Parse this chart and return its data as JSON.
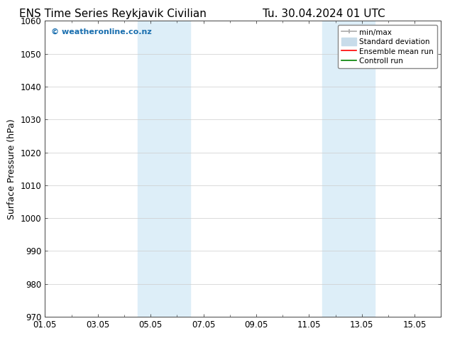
{
  "title_left": "ENS Time Series Reykjavik Civilian",
  "title_right": "Tu. 30.04.2024 01 UTC",
  "ylabel": "Surface Pressure (hPa)",
  "ylim": [
    970,
    1060
  ],
  "yticks": [
    970,
    980,
    990,
    1000,
    1010,
    1020,
    1030,
    1040,
    1050,
    1060
  ],
  "xtick_labels": [
    "01.05",
    "03.05",
    "05.05",
    "07.05",
    "09.05",
    "11.05",
    "13.05",
    "15.05"
  ],
  "xtick_positions": [
    0,
    2,
    4,
    6,
    8,
    10,
    12,
    14
  ],
  "xlim": [
    0,
    15
  ],
  "shaded_bands": [
    {
      "x_start": 3.5,
      "x_end": 5.5,
      "color": "#ddeef8"
    },
    {
      "x_start": 10.5,
      "x_end": 12.5,
      "color": "#ddeef8"
    }
  ],
  "watermark_text": "© weatheronline.co.nz",
  "watermark_color": "#1a6faf",
  "background_color": "#ffffff",
  "legend_entries": [
    {
      "label": "min/max",
      "color": "#aaaaaa",
      "lw": 1.2
    },
    {
      "label": "Standard deviation",
      "color": "#c8dcea",
      "lw": 6
    },
    {
      "label": "Ensemble mean run",
      "color": "#ff0000",
      "lw": 1.2
    },
    {
      "label": "Controll run",
      "color": "#008000",
      "lw": 1.2
    }
  ],
  "title_fontsize": 11,
  "tick_fontsize": 8.5,
  "legend_fontsize": 7.5,
  "ylabel_fontsize": 9,
  "grid_color": "#cccccc",
  "spine_color": "#444444"
}
